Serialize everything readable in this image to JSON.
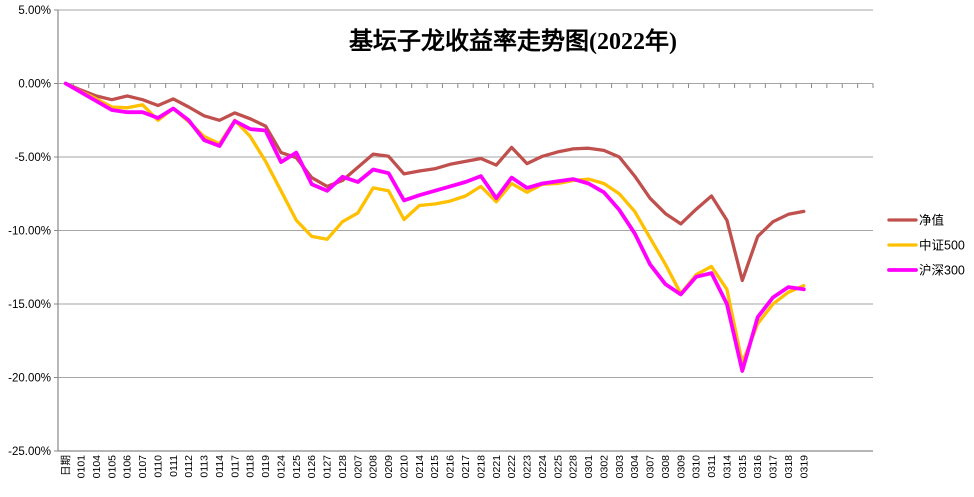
{
  "chart_data": {
    "type": "line",
    "title": "基坛子龙收益率走势图(2022年)",
    "title_color": "#C00000",
    "legend_position": "right",
    "grid": true,
    "background": "#FFFFFF",
    "grid_color": "#A6A6A6",
    "axis_color": "#898989",
    "y_axis": {
      "min": -25,
      "max": 5,
      "step": 5,
      "unit": "%",
      "tick_labels": [
        "5.00%",
        "0.00%",
        "-5.00%",
        "-10.00%",
        "-15.00%",
        "-20.00%",
        "-25.00%"
      ]
    },
    "x_labels": [
      "日期",
      "0101",
      "0104",
      "0105",
      "0106",
      "0107",
      "0110",
      "0111",
      "0112",
      "0113",
      "0114",
      "0117",
      "0118",
      "0119",
      "0124",
      "0125",
      "0126",
      "0127",
      "0128",
      "0207",
      "0208",
      "0209",
      "0210",
      "0214",
      "0215",
      "0216",
      "0217",
      "0218",
      "0221",
      "0222",
      "0223",
      "0224",
      "0225",
      "0228",
      "0301",
      "0302",
      "0303",
      "0304",
      "0307",
      "0308",
      "0309",
      "0310",
      "0311",
      "0314",
      "0315",
      "0316",
      "0317",
      "0318",
      "0319"
    ],
    "series": [
      {
        "id": "net-value",
        "name": "净值",
        "color": "#C0504D",
        "width": 3.3,
        "values": [
          0,
          -0.45,
          -0.85,
          -1.1,
          -0.85,
          -1.1,
          -1.5,
          -1.05,
          -1.6,
          -2.2,
          -2.5,
          -2.0,
          -2.4,
          -2.9,
          -4.7,
          -5.05,
          -6.4,
          -7.0,
          -6.6,
          -5.7,
          -4.8,
          -4.95,
          -6.15,
          -5.95,
          -5.8,
          -5.5,
          -5.3,
          -5.1,
          -5.55,
          -4.35,
          -5.45,
          -4.95,
          -4.65,
          -4.45,
          -4.4,
          -4.55,
          -5.0,
          -6.3,
          -7.8,
          -8.85,
          -9.55,
          -8.55,
          -7.65,
          -9.3,
          -13.4,
          -10.4,
          -9.4,
          -8.9,
          -8.7
        ]
      },
      {
        "id": "csi500",
        "name": "中证500",
        "color": "#FFC000",
        "width": 3.3,
        "values": [
          0,
          -0.55,
          -1.05,
          -1.6,
          -1.65,
          -1.45,
          -2.5,
          -1.7,
          -2.6,
          -3.6,
          -4.1,
          -2.5,
          -3.6,
          -5.3,
          -7.3,
          -9.3,
          -10.4,
          -10.6,
          -9.4,
          -8.8,
          -7.1,
          -7.3,
          -9.25,
          -8.3,
          -8.2,
          -8.0,
          -7.65,
          -7.0,
          -8.05,
          -6.8,
          -7.4,
          -6.85,
          -6.8,
          -6.6,
          -6.5,
          -6.8,
          -7.5,
          -8.7,
          -10.5,
          -12.3,
          -14.3,
          -13.0,
          -12.45,
          -14.0,
          -19.0,
          -16.35,
          -15.0,
          -14.2,
          -13.75
        ]
      },
      {
        "id": "hs300",
        "name": "沪深300",
        "color": "#FF00FF",
        "width": 3.8,
        "values": [
          0,
          -0.6,
          -1.2,
          -1.8,
          -1.95,
          -1.95,
          -2.35,
          -1.7,
          -2.5,
          -3.85,
          -4.25,
          -2.55,
          -3.1,
          -3.2,
          -5.35,
          -4.7,
          -6.85,
          -7.3,
          -6.35,
          -6.7,
          -5.85,
          -6.1,
          -7.95,
          -7.6,
          -7.3,
          -7.0,
          -6.7,
          -6.3,
          -7.8,
          -6.4,
          -7.1,
          -6.8,
          -6.65,
          -6.5,
          -6.8,
          -7.4,
          -8.6,
          -10.2,
          -12.3,
          -13.65,
          -14.35,
          -13.15,
          -12.9,
          -15.0,
          -19.55,
          -15.9,
          -14.55,
          -13.85,
          -14.0
        ]
      }
    ]
  }
}
